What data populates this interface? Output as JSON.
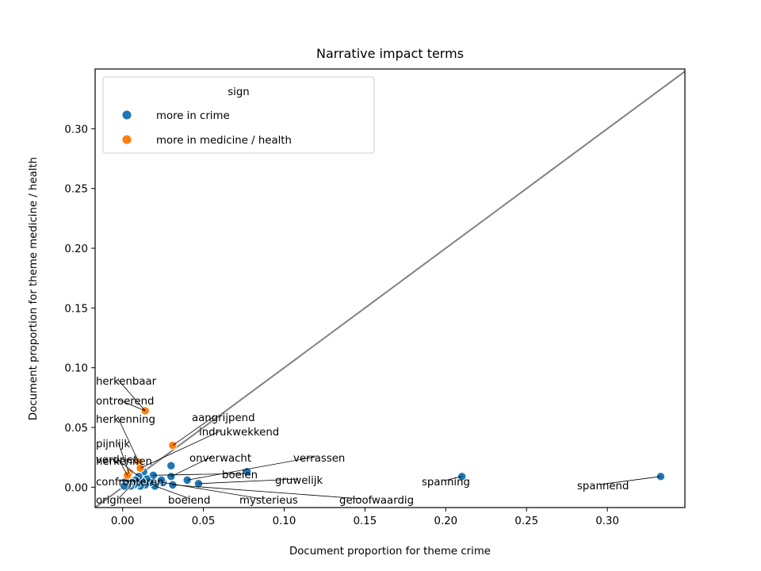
{
  "chart_data": {
    "type": "scatter",
    "title": "Narrative impact terms",
    "xlabel": "Document proportion for theme crime",
    "ylabel": "Document proportion for theme medicine / health",
    "xlim": [
      -0.017,
      0.348
    ],
    "ylim": [
      -0.017,
      0.35
    ],
    "xticks": [
      "0.00",
      "0.05",
      "0.10",
      "0.15",
      "0.20",
      "0.25",
      "0.30"
    ],
    "yticks": [
      "0.00",
      "0.05",
      "0.10",
      "0.15",
      "0.20",
      "0.25",
      "0.30"
    ],
    "diagonal": true,
    "grid": false,
    "legend": {
      "title": "sign",
      "placement": "upper-left",
      "entries": [
        {
          "name": "more in crime",
          "color": "#1f77b4"
        },
        {
          "name": "more in medicine / health",
          "color": "#ff7f0e"
        }
      ]
    },
    "series": [
      {
        "name": "more in crime",
        "color": "#1f77b4",
        "points": [
          [
            0.333,
            0.009
          ],
          [
            0.21,
            0.009
          ],
          [
            0.077,
            0.013
          ],
          [
            0.047,
            0.003
          ],
          [
            0.04,
            0.006
          ],
          [
            0.03,
            0.018
          ],
          [
            0.03,
            0.009
          ],
          [
            0.031,
            0.002
          ],
          [
            0.025,
            0.004
          ],
          [
            0.024,
            0.006
          ],
          [
            0.02,
            0.001
          ],
          [
            0.019,
            0.01
          ],
          [
            0.017,
            0.004
          ],
          [
            0.015,
            0.007
          ],
          [
            0.014,
            0.002
          ],
          [
            0.013,
            0.013
          ],
          [
            0.012,
            0.005
          ],
          [
            0.011,
            0.001
          ],
          [
            0.01,
            0.009
          ],
          [
            0.009,
            0.003
          ],
          [
            0.008,
            0.006
          ],
          [
            0.007,
            0.002
          ],
          [
            0.006,
            0.004
          ],
          [
            0.005,
            0.001
          ],
          [
            0.004,
            0.003
          ],
          [
            0.003,
            0.002
          ],
          [
            0.002,
            0.005
          ],
          [
            0.001,
            0.001
          ]
        ]
      },
      {
        "name": "more in medicine / health",
        "color": "#ff7f0e",
        "points": [
          [
            0.014,
            0.064
          ],
          [
            0.031,
            0.035
          ],
          [
            0.01,
            0.021
          ],
          [
            0.011,
            0.016
          ],
          [
            0.004,
            0.012
          ],
          [
            0.003,
            0.01
          ]
        ]
      }
    ],
    "annotations": [
      {
        "text": "herkenbaar",
        "x": 0.014,
        "y": 0.064
      },
      {
        "text": "ontroerend",
        "x": 0.014,
        "y": 0.064
      },
      {
        "text": "herkenning",
        "x": 0.01,
        "y": 0.021
      },
      {
        "text": "aangrijpend",
        "x": 0.031,
        "y": 0.035
      },
      {
        "text": "indrukwekkend",
        "x": 0.011,
        "y": 0.016
      },
      {
        "text": "pijnlijk",
        "x": 0.004,
        "y": 0.012
      },
      {
        "text": "verdriet",
        "x": 0.003,
        "y": 0.01
      },
      {
        "text": "herkennen",
        "x": 0.01,
        "y": 0.009
      },
      {
        "text": "onverwacht",
        "x": 0.03,
        "y": 0.009
      },
      {
        "text": "verrassen",
        "x": 0.04,
        "y": 0.006
      },
      {
        "text": "boeien",
        "x": 0.019,
        "y": 0.01
      },
      {
        "text": "gruwelijk",
        "x": 0.047,
        "y": 0.003
      },
      {
        "text": "spanning",
        "x": 0.21,
        "y": 0.009
      },
      {
        "text": "spannend",
        "x": 0.333,
        "y": 0.009
      },
      {
        "text": "confronteren",
        "x": 0.012,
        "y": 0.005
      },
      {
        "text": "origineel",
        "x": 0.005,
        "y": 0.001
      },
      {
        "text": "boeiend",
        "x": 0.02,
        "y": 0.001
      },
      {
        "text": "mysterieus",
        "x": 0.025,
        "y": 0.004
      },
      {
        "text": "geloofwaardig",
        "x": 0.031,
        "y": 0.002
      }
    ]
  }
}
